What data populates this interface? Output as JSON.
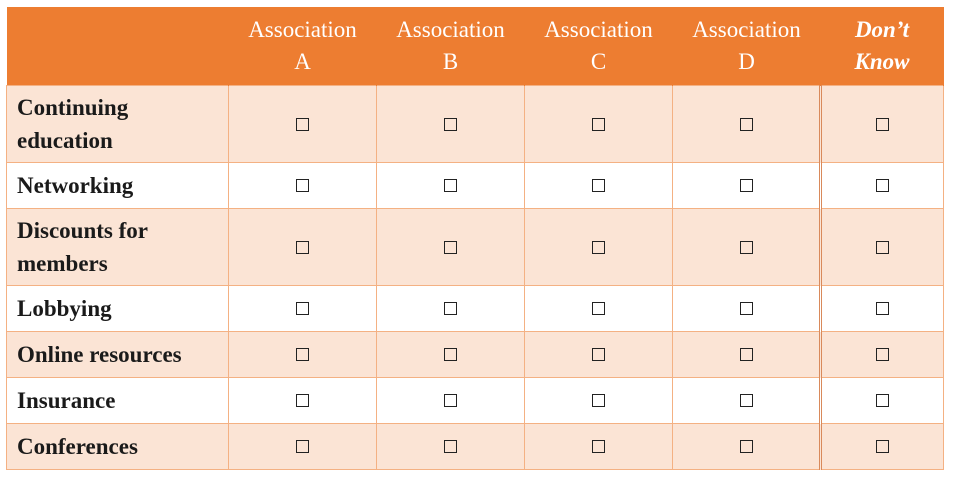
{
  "table": {
    "columns": [
      {
        "line1": "Association",
        "line2": "A"
      },
      {
        "line1": "Association",
        "line2": "B"
      },
      {
        "line1": "Association",
        "line2": "C"
      },
      {
        "line1": "Association",
        "line2": "D"
      },
      {
        "line1": "Don’t",
        "line2": "Know"
      }
    ],
    "rows": [
      {
        "label": "Continuing education",
        "checked": [
          false,
          false,
          false,
          false,
          false
        ]
      },
      {
        "label": "Networking",
        "checked": [
          false,
          false,
          false,
          false,
          false
        ]
      },
      {
        "label": "Discounts for members",
        "checked": [
          false,
          false,
          false,
          false,
          false
        ]
      },
      {
        "label": "Lobbying",
        "checked": [
          false,
          false,
          false,
          false,
          false
        ]
      },
      {
        "label": "Online resources",
        "checked": [
          false,
          false,
          false,
          false,
          false
        ]
      },
      {
        "label": "Insurance",
        "checked": [
          false,
          false,
          false,
          false,
          false
        ]
      },
      {
        "label": "Conferences",
        "checked": [
          false,
          false,
          false,
          false,
          false
        ]
      }
    ]
  },
  "colors": {
    "header_bg": "#ed7d31",
    "header_text": "#ffffff",
    "band_bg": "#fbe4d5",
    "grid_line": "#f4b183"
  }
}
